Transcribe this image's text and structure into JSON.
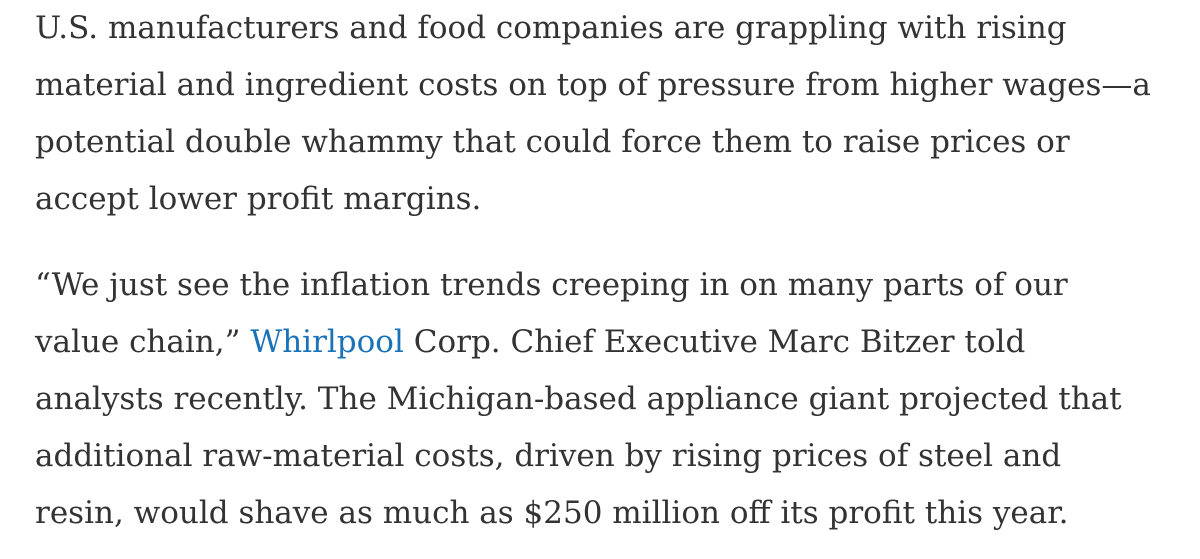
{
  "article": {
    "paragraph_1": {
      "lines": [
        "U.S. manufacturers and food companies are grappling with rising",
        "material and ingredient costs on top of pressure from higher wages—a",
        "potential double whammy that could force them to raise prices or",
        "accept lower profit margins."
      ]
    },
    "paragraph_2": {
      "line_1": "“We just see the inflation trends creeping in on many parts of our",
      "line_2_before": "value chain,” ",
      "line_2_link": "Whirlpool",
      "line_2_after": " Corp. Chief Executive Marc Bitzer told",
      "line_3": "analysts recently. The Michigan-based appliance giant projected that",
      "line_4": "additional raw-material costs, driven by rising prices of steel and",
      "line_5": "resin, would shave as much as $250 million off its profit this year."
    }
  },
  "colors": {
    "text": "#333333",
    "link": "#1a73b8",
    "background": "#ffffff"
  }
}
